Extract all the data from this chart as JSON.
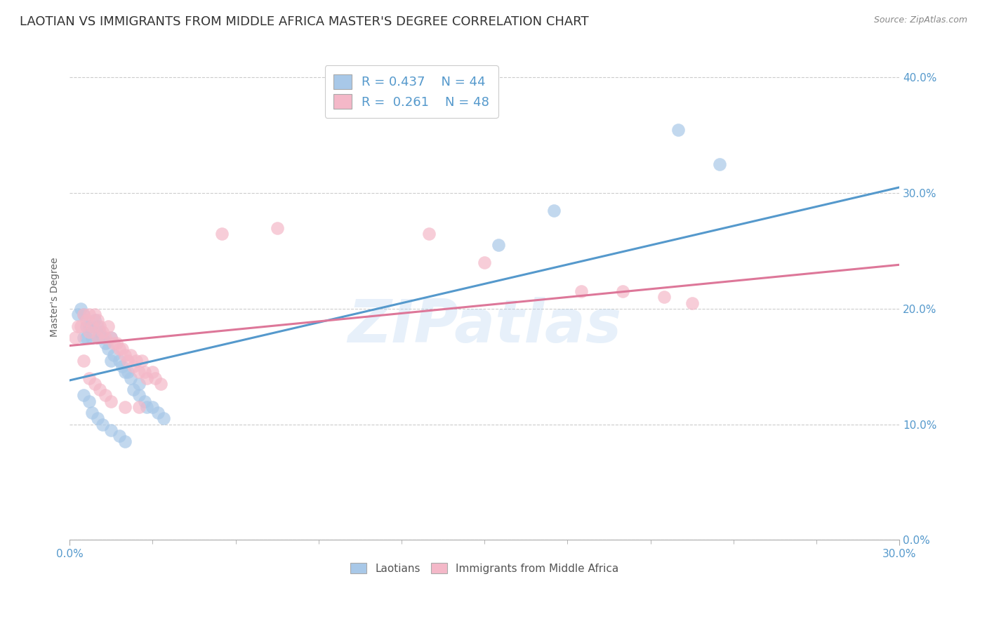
{
  "title": "LAOTIAN VS IMMIGRANTS FROM MIDDLE AFRICA MASTER'S DEGREE CORRELATION CHART",
  "source_text": "Source: ZipAtlas.com",
  "ylabel": "Master's Degree",
  "xlim": [
    0.0,
    0.3
  ],
  "ylim": [
    0.0,
    0.42
  ],
  "ytick_vals": [
    0.0,
    0.1,
    0.2,
    0.3,
    0.4
  ],
  "ytick_labels": [
    "0.0%",
    "10.0%",
    "20.0%",
    "30.0%",
    "40.0%"
  ],
  "xtick_major": [
    0.0,
    0.3
  ],
  "xtick_major_labels": [
    "0.0%",
    "30.0%"
  ],
  "xtick_minor": [
    0.03,
    0.06,
    0.09,
    0.12,
    0.15,
    0.18,
    0.21,
    0.24,
    0.27
  ],
  "watermark": "ZIPatlas",
  "blue_color": "#a8c8e8",
  "pink_color": "#f4b8c8",
  "blue_line_color": "#5599cc",
  "pink_line_color": "#dd7799",
  "blue_scatter": [
    [
      0.003,
      0.195
    ],
    [
      0.004,
      0.2
    ],
    [
      0.005,
      0.175
    ],
    [
      0.005,
      0.195
    ],
    [
      0.006,
      0.175
    ],
    [
      0.006,
      0.185
    ],
    [
      0.007,
      0.185
    ],
    [
      0.008,
      0.175
    ],
    [
      0.008,
      0.185
    ],
    [
      0.009,
      0.19
    ],
    [
      0.01,
      0.175
    ],
    [
      0.01,
      0.185
    ],
    [
      0.011,
      0.18
    ],
    [
      0.012,
      0.175
    ],
    [
      0.013,
      0.17
    ],
    [
      0.014,
      0.165
    ],
    [
      0.015,
      0.155
    ],
    [
      0.015,
      0.175
    ],
    [
      0.016,
      0.16
    ],
    [
      0.018,
      0.155
    ],
    [
      0.019,
      0.15
    ],
    [
      0.02,
      0.145
    ],
    [
      0.021,
      0.145
    ],
    [
      0.022,
      0.14
    ],
    [
      0.023,
      0.13
    ],
    [
      0.025,
      0.125
    ],
    [
      0.025,
      0.135
    ],
    [
      0.027,
      0.12
    ],
    [
      0.028,
      0.115
    ],
    [
      0.03,
      0.115
    ],
    [
      0.032,
      0.11
    ],
    [
      0.034,
      0.105
    ],
    [
      0.005,
      0.125
    ],
    [
      0.007,
      0.12
    ],
    [
      0.008,
      0.11
    ],
    [
      0.01,
      0.105
    ],
    [
      0.012,
      0.1
    ],
    [
      0.015,
      0.095
    ],
    [
      0.018,
      0.09
    ],
    [
      0.02,
      0.085
    ],
    [
      0.155,
      0.255
    ],
    [
      0.175,
      0.285
    ],
    [
      0.22,
      0.355
    ],
    [
      0.235,
      0.325
    ]
  ],
  "pink_scatter": [
    [
      0.002,
      0.175
    ],
    [
      0.003,
      0.185
    ],
    [
      0.004,
      0.185
    ],
    [
      0.005,
      0.195
    ],
    [
      0.006,
      0.19
    ],
    [
      0.007,
      0.18
    ],
    [
      0.007,
      0.195
    ],
    [
      0.008,
      0.185
    ],
    [
      0.009,
      0.195
    ],
    [
      0.01,
      0.19
    ],
    [
      0.01,
      0.175
    ],
    [
      0.011,
      0.185
    ],
    [
      0.012,
      0.18
    ],
    [
      0.013,
      0.175
    ],
    [
      0.014,
      0.185
    ],
    [
      0.015,
      0.175
    ],
    [
      0.016,
      0.17
    ],
    [
      0.017,
      0.17
    ],
    [
      0.018,
      0.165
    ],
    [
      0.019,
      0.165
    ],
    [
      0.02,
      0.16
    ],
    [
      0.021,
      0.155
    ],
    [
      0.022,
      0.16
    ],
    [
      0.023,
      0.15
    ],
    [
      0.024,
      0.155
    ],
    [
      0.025,
      0.145
    ],
    [
      0.026,
      0.155
    ],
    [
      0.027,
      0.145
    ],
    [
      0.028,
      0.14
    ],
    [
      0.03,
      0.145
    ],
    [
      0.031,
      0.14
    ],
    [
      0.033,
      0.135
    ],
    [
      0.005,
      0.155
    ],
    [
      0.007,
      0.14
    ],
    [
      0.009,
      0.135
    ],
    [
      0.011,
      0.13
    ],
    [
      0.013,
      0.125
    ],
    [
      0.015,
      0.12
    ],
    [
      0.02,
      0.115
    ],
    [
      0.025,
      0.115
    ],
    [
      0.055,
      0.265
    ],
    [
      0.075,
      0.27
    ],
    [
      0.13,
      0.265
    ],
    [
      0.15,
      0.24
    ],
    [
      0.185,
      0.215
    ],
    [
      0.2,
      0.215
    ],
    [
      0.215,
      0.21
    ],
    [
      0.225,
      0.205
    ]
  ],
  "blue_line_x": [
    0.0,
    0.3
  ],
  "blue_line_y": [
    0.138,
    0.305
  ],
  "pink_line_x": [
    0.0,
    0.3
  ],
  "pink_line_y": [
    0.168,
    0.238
  ],
  "title_fontsize": 13,
  "axis_label_fontsize": 10,
  "tick_fontsize": 11,
  "legend_fontsize": 13,
  "tick_color": "#5599cc",
  "background_color": "#ffffff",
  "grid_color": "#cccccc"
}
